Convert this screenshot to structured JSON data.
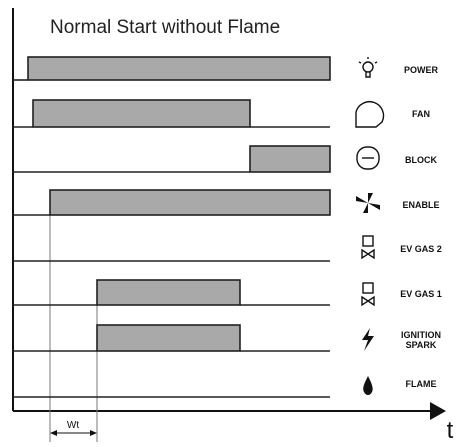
{
  "title": "Normal Start without Flame",
  "signals": [
    {
      "label": "POWER"
    },
    {
      "label": "FAN"
    },
    {
      "label": "BLOCK"
    },
    {
      "label": "ENABLE"
    },
    {
      "label": "EV GAS 2"
    },
    {
      "label": "EV GAS 1"
    },
    {
      "label": "IGNITION SPARK"
    },
    {
      "label": "FLAME"
    }
  ],
  "delay_label": "Wt",
  "time_axis_label": "t"
}
